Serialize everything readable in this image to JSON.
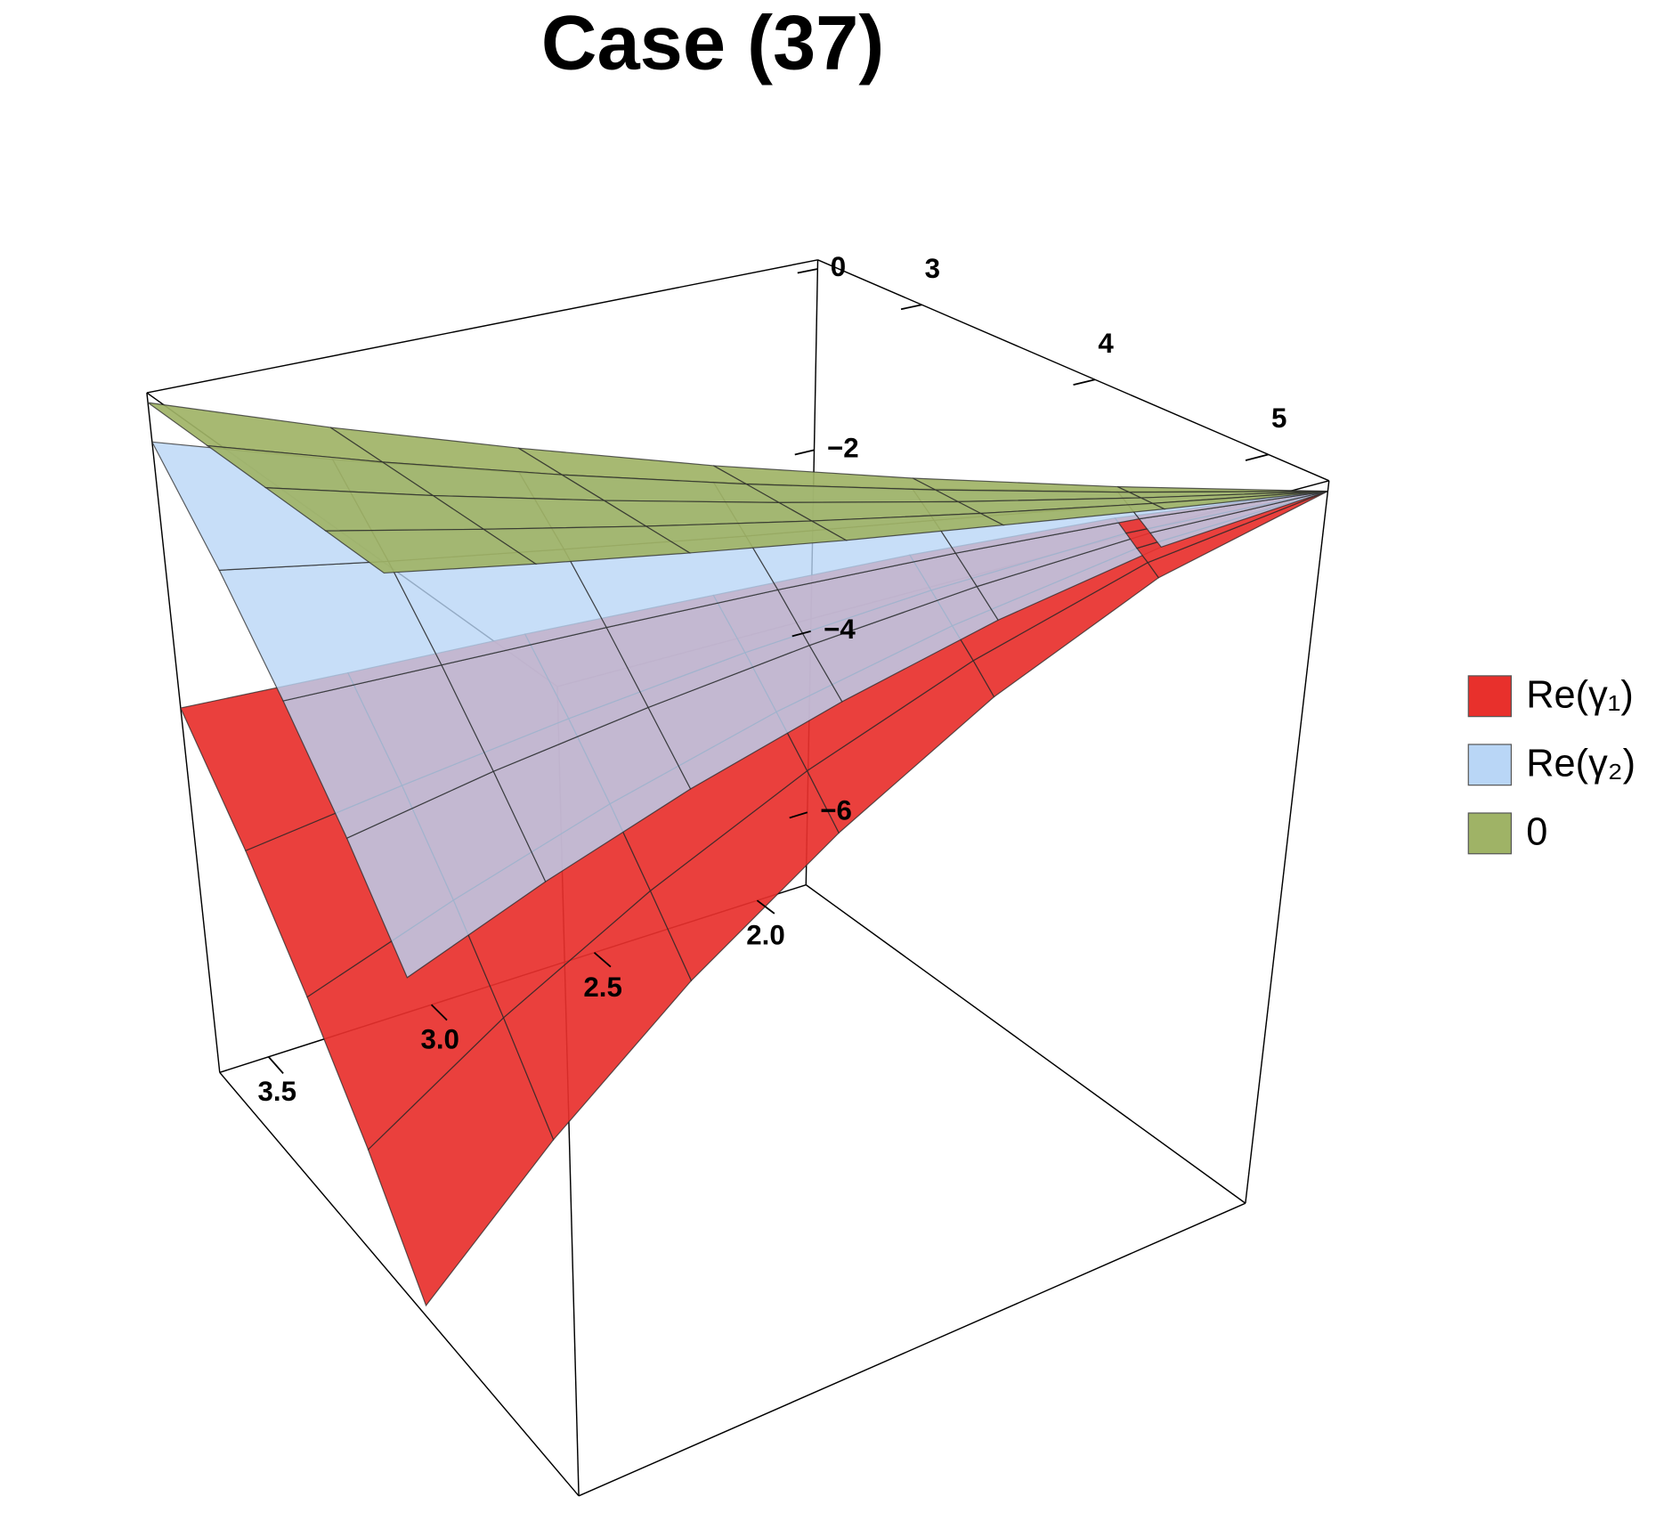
{
  "chart_data": {
    "type": "surface3d",
    "title": "Case (37)",
    "xlim": [
      1.85,
      3.65
    ],
    "ylim": [
      2.4,
      5.35
    ],
    "zlim": [
      -6.8,
      0.1
    ],
    "xticks": [
      {
        "value": 2,
        "label": "2.0"
      },
      2.5,
      {
        "value": 3,
        "label": "3.0"
      },
      3.5
    ],
    "yticks": [
      3,
      4,
      5
    ],
    "zticks": [
      0,
      {
        "value": -2,
        "label": "−2"
      },
      {
        "value": -4,
        "label": "−4"
      },
      {
        "value": -6,
        "label": "−6"
      }
    ],
    "x": [
      1.85,
      2.15,
      2.45,
      2.75,
      3.05,
      3.35,
      3.65
    ],
    "y": [
      [
        5.35,
        5.35,
        5.35,
        5.35,
        5.35
      ],
      [
        4.86,
        4.93,
        5.0,
        5.07,
        5.14
      ],
      [
        4.37,
        4.51,
        4.65,
        4.79,
        4.93
      ],
      [
        3.88,
        4.09,
        4.3,
        4.51,
        4.73
      ],
      [
        3.38,
        3.67,
        3.95,
        4.23,
        4.52
      ],
      [
        2.89,
        3.25,
        3.6,
        3.95,
        4.31
      ],
      [
        2.4,
        2.83,
        3.25,
        3.68,
        4.1
      ]
    ],
    "series": [
      {
        "name": "Re(γ₁)",
        "color": "#e8302c",
        "values": [
          [
            0,
            0,
            0,
            0,
            0
          ],
          [
            -0.3,
            -0.39,
            -0.48,
            -0.56,
            -0.65
          ],
          [
            -0.74,
            -0.96,
            -1.18,
            -1.39,
            -1.61
          ],
          [
            -1.26,
            -1.62,
            -1.99,
            -2.35,
            -2.72
          ],
          [
            -1.83,
            -2.36,
            -2.89,
            -3.42,
            -3.95
          ],
          [
            -2.45,
            -3.16,
            -3.87,
            -4.58,
            -5.29
          ],
          [
            -3.1,
            -4.0,
            -4.9,
            -5.8,
            -6.7
          ]
        ]
      },
      {
        "name": "Re(γ₂)",
        "color": "#b9d6f6",
        "values": [
          [
            0,
            0,
            0,
            0,
            0
          ],
          [
            -0.04,
            -0.12,
            -0.2,
            -0.28,
            -0.36
          ],
          [
            -0.1,
            -0.29,
            -0.49,
            -0.69,
            -0.89
          ],
          [
            -0.16,
            -0.5,
            -0.83,
            -1.17,
            -1.5
          ],
          [
            -0.24,
            -0.72,
            -1.21,
            -1.7,
            -2.18
          ],
          [
            -0.32,
            -0.97,
            -1.62,
            -2.27,
            -2.92
          ],
          [
            -0.4,
            -1.23,
            -2.05,
            -2.88,
            -3.7
          ]
        ]
      },
      {
        "name": "0",
        "color": "#9fb366",
        "values": [
          [
            0,
            0,
            0,
            0,
            0
          ],
          [
            0,
            0,
            0,
            0,
            0
          ],
          [
            0,
            0,
            0,
            0,
            0
          ],
          [
            0,
            0,
            0,
            0,
            0
          ],
          [
            0,
            0,
            0,
            0,
            0
          ],
          [
            0,
            0,
            0,
            0,
            0
          ],
          [
            0,
            0,
            0,
            0,
            0
          ]
        ]
      }
    ],
    "legend": "right"
  }
}
